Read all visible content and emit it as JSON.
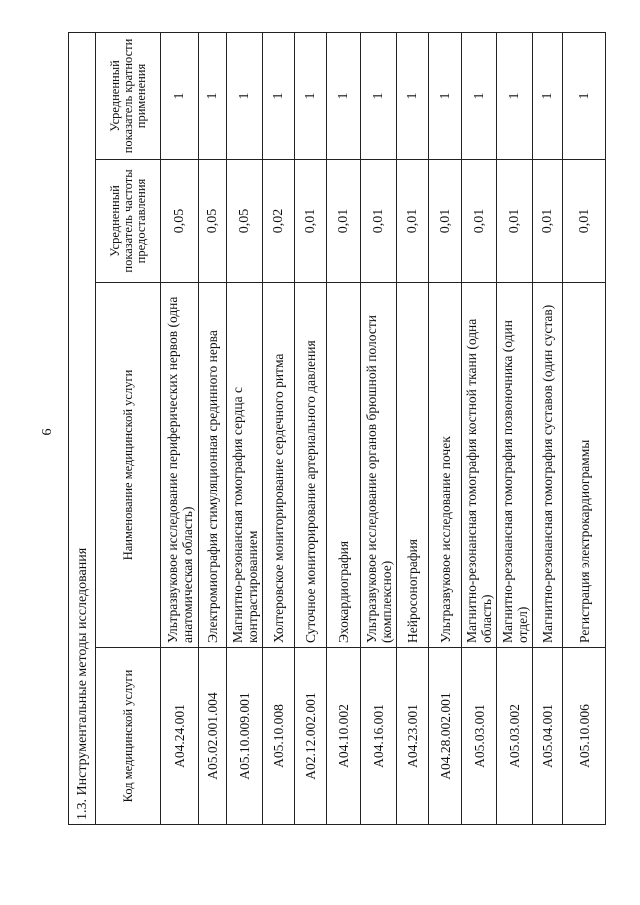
{
  "page_number": "6",
  "section_title": "1.3. Инструментальные методы исследования",
  "columns": [
    "Код медицинской услуги",
    "Наименование медицинской услуги",
    "Усредненный показатель частоты предоставления",
    "Усредненный показатель кратности применения"
  ],
  "rows": [
    [
      "A04.24.001",
      "Ультразвуковое исследование периферических нервов (одна анатомическая область)",
      "0,05",
      "1"
    ],
    [
      "A05.02.001.004",
      "Электромиография стимуляционная срединного нерва",
      "0,05",
      "1"
    ],
    [
      "A05.10.009.001",
      "Магнитно-резонансная томография сердца с контрастированием",
      "0,05",
      "1"
    ],
    [
      "A05.10.008",
      "Холтеровское мониторирование сердечного ритма",
      "0,02",
      "1"
    ],
    [
      "A02.12.002.001",
      "Суточное мониторирование артериального давления",
      "0,01",
      "1"
    ],
    [
      "A04.10.002",
      "Эхокардиография",
      "0,01",
      "1"
    ],
    [
      "A04.16.001",
      "Ультразвуковое исследование органов брюшной полости (комплексное)",
      "0,01",
      "1"
    ],
    [
      "A04.23.001",
      "Нейросонография",
      "0,01",
      "1"
    ],
    [
      "A04.28.002.001",
      "Ультразвуковое исследование почек",
      "0,01",
      "1"
    ],
    [
      "A05.03.001",
      "Магнитно-резонансная томография костной ткани (одна область)",
      "0,01",
      "1"
    ],
    [
      "A05.03.002",
      "Магнитно-резонансная томография позвоночника (один отдел)",
      "0,01",
      "1"
    ],
    [
      "A05.04.001",
      "Магнитно-резонансная томография суставов (один сустав)",
      "0,01",
      "1"
    ],
    [
      "A05.10.006",
      "Регистрация электрокардиограммы",
      "0,01",
      "1"
    ]
  ]
}
